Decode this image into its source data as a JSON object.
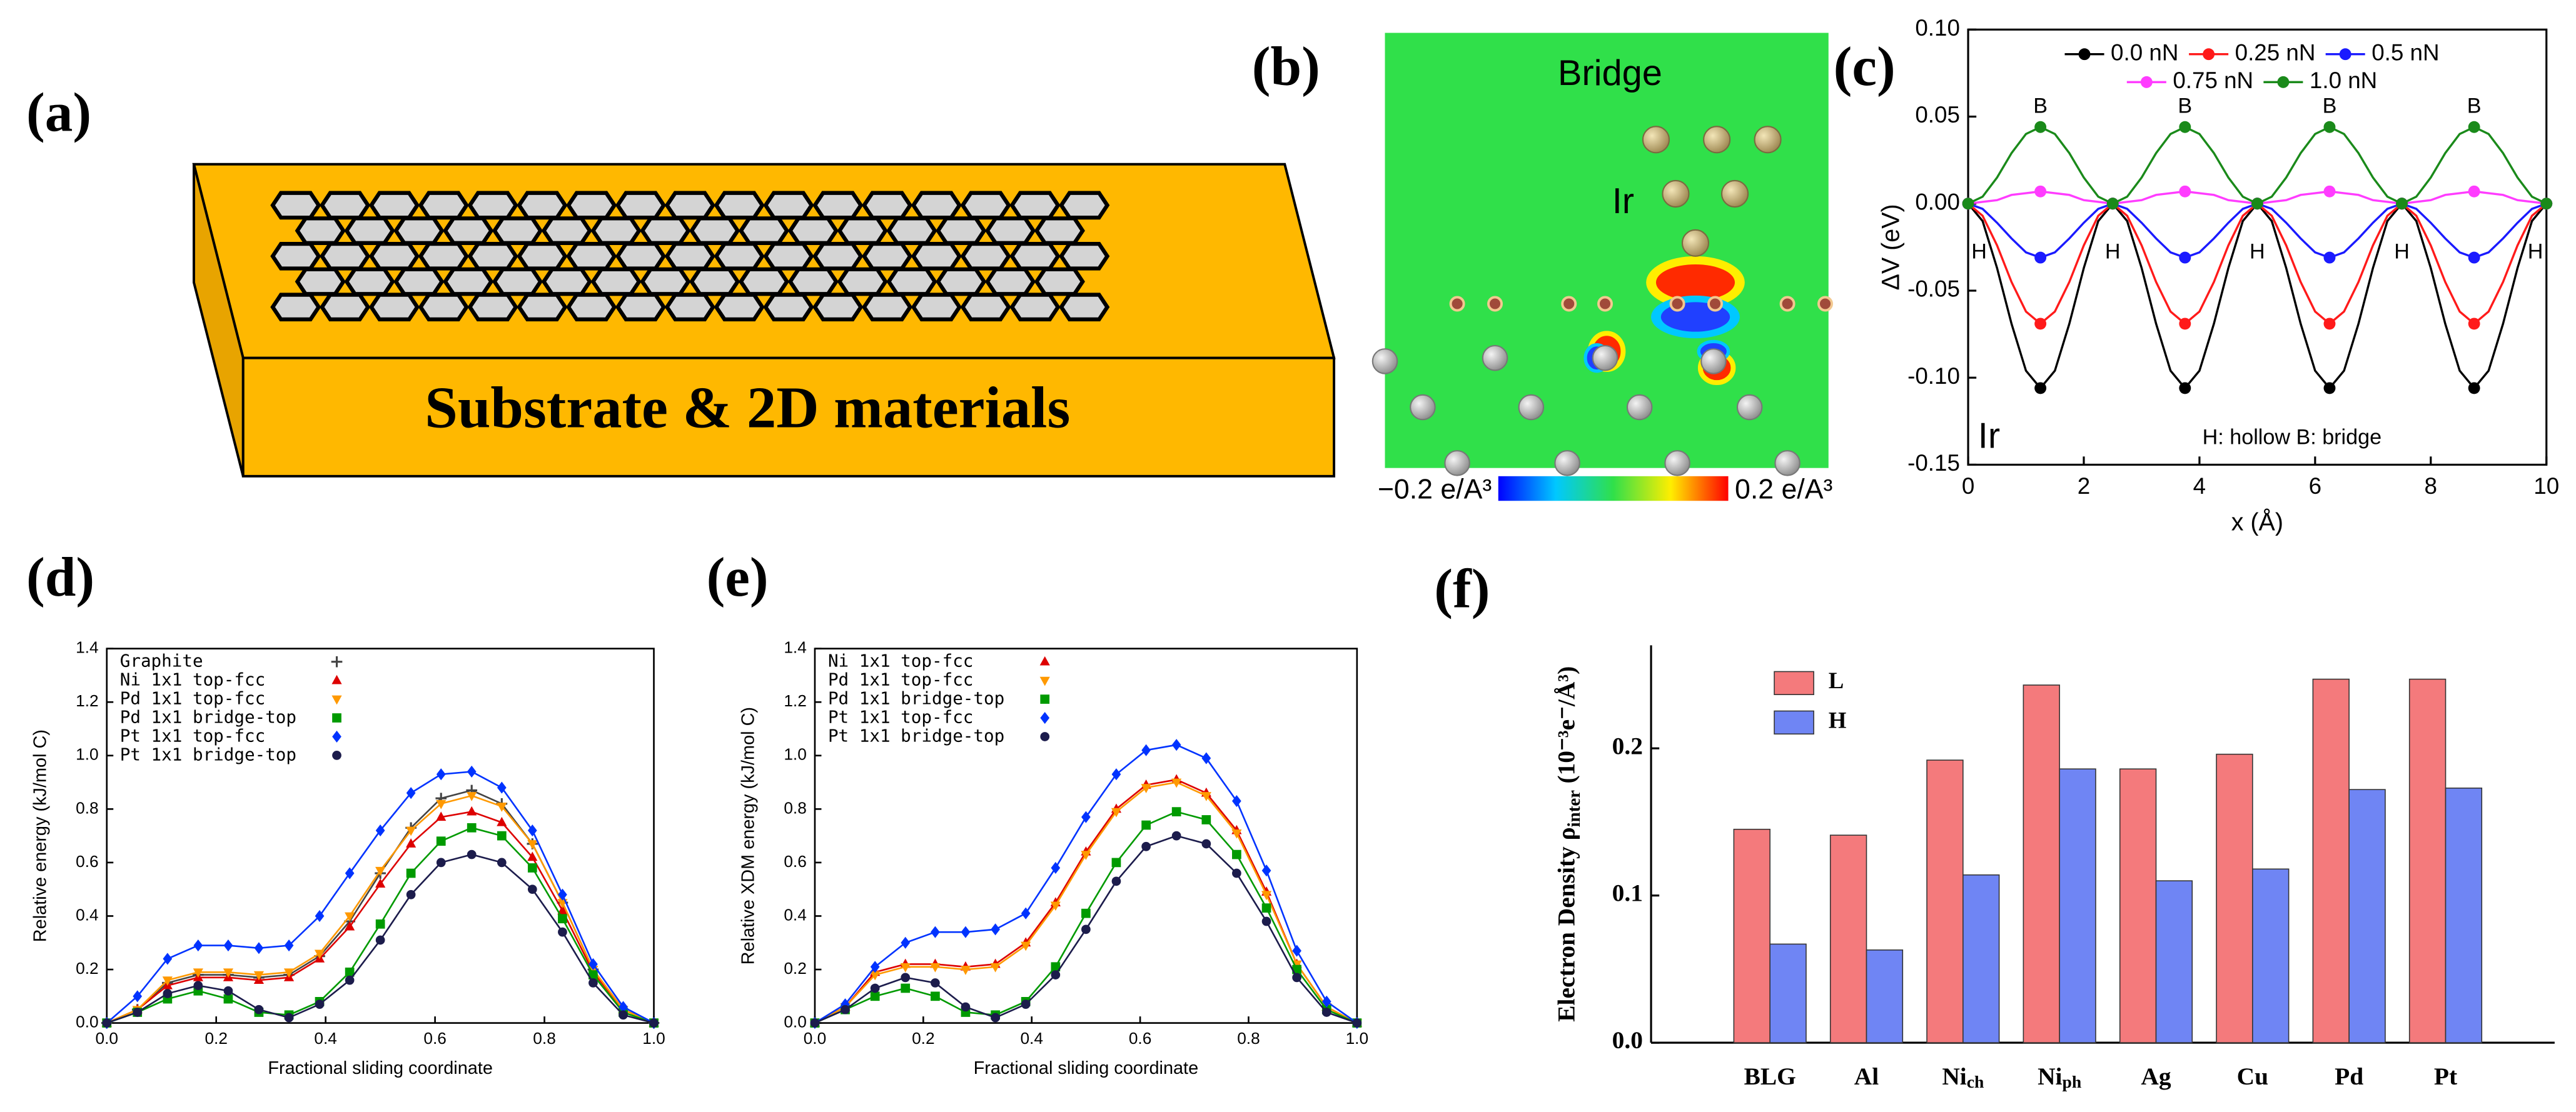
{
  "panel_labels": [
    "(a)",
    "(b)",
    "(c)",
    "(d)",
    "(e)",
    "(f)"
  ],
  "diagram": {
    "label": "Substrate & 2D materials"
  },
  "density_map": {
    "title": "Bridge",
    "atom_label": "Ir",
    "colorbar_min_label": "−0.2 e/A³",
    "colorbar_max_label": "0.2 e/A³"
  },
  "chart_data": [
    {
      "type": "line",
      "xlabel": "x (Å)",
      "ylabel": "ΔV (eV)",
      "xlim": [
        0,
        10
      ],
      "xticks": [
        0,
        2,
        4,
        6,
        8,
        10
      ],
      "ylim": [
        -0.15,
        0.1
      ],
      "yticks": [
        -0.15,
        {
          "value": -0.1,
          "label": "-0.10"
        },
        -0.05,
        {
          "value": 0,
          "label": "0.00"
        },
        0.05,
        {
          "value": 0.1,
          "label": "0.10"
        }
      ],
      "legend": "top",
      "markers": "extrema",
      "annotations": {
        "hollow": "H",
        "bridge": "B"
      },
      "inset_label": "Ir",
      "note": "H: hollow  B: bridge",
      "x": [
        0,
        0.25,
        0.5,
        0.75,
        1,
        1.25,
        1.5,
        1.75,
        2,
        2.25,
        2.5,
        2.75,
        3,
        3.25,
        3.5,
        3.75,
        4,
        4.25,
        4.5,
        4.75,
        5,
        5.25,
        5.5,
        5.75,
        6,
        6.25,
        6.5,
        6.75,
        7,
        7.25,
        7.5,
        7.75,
        8,
        8.25,
        8.5,
        8.75,
        9,
        9.25,
        9.5,
        9.75,
        10
      ],
      "series": [
        {
          "name": "0.0 nN",
          "color": "#000000",
          "marker": "circle",
          "values": [
            0,
            -0.01,
            -0.037,
            -0.069,
            -0.096,
            -0.106,
            -0.096,
            -0.069,
            -0.037,
            -0.01,
            0,
            -0.01,
            -0.037,
            -0.069,
            -0.096,
            -0.106,
            -0.096,
            -0.069,
            -0.037,
            -0.01,
            0,
            -0.01,
            -0.037,
            -0.069,
            -0.096,
            -0.106,
            -0.096,
            -0.069,
            -0.037,
            -0.01,
            0,
            -0.01,
            -0.037,
            -0.069,
            -0.096,
            -0.106,
            -0.096,
            -0.069,
            -0.037,
            -0.01,
            0
          ]
        },
        {
          "name": "0.25 nN",
          "color": "#ff1a1a",
          "marker": "circle",
          "values": [
            0,
            -0.007,
            -0.024,
            -0.045,
            -0.062,
            -0.069,
            -0.062,
            -0.045,
            -0.024,
            -0.007,
            0,
            -0.007,
            -0.024,
            -0.045,
            -0.062,
            -0.069,
            -0.062,
            -0.045,
            -0.024,
            -0.007,
            0,
            -0.007,
            -0.024,
            -0.045,
            -0.062,
            -0.069,
            -0.062,
            -0.045,
            -0.024,
            -0.007,
            0,
            -0.007,
            -0.024,
            -0.045,
            -0.062,
            -0.069,
            -0.062,
            -0.045,
            -0.024,
            -0.007,
            0
          ]
        },
        {
          "name": "0.5 nN",
          "color": "#1a1aff",
          "marker": "circle",
          "values": [
            0,
            -0.003,
            -0.011,
            -0.02,
            -0.028,
            -0.031,
            -0.028,
            -0.02,
            -0.011,
            -0.003,
            0,
            -0.003,
            -0.011,
            -0.02,
            -0.028,
            -0.031,
            -0.028,
            -0.02,
            -0.011,
            -0.003,
            0,
            -0.003,
            -0.011,
            -0.02,
            -0.028,
            -0.031,
            -0.028,
            -0.02,
            -0.011,
            -0.003,
            0,
            -0.003,
            -0.011,
            -0.02,
            -0.028,
            -0.031,
            -0.028,
            -0.02,
            -0.011,
            -0.003,
            0
          ]
        },
        {
          "name": "0.75 nN",
          "color": "#ff3cff",
          "marker": "circle",
          "values": [
            0,
            0.001,
            0.002,
            0.005,
            0.006,
            0.007,
            0.006,
            0.005,
            0.002,
            0.001,
            0,
            0.001,
            0.002,
            0.005,
            0.006,
            0.007,
            0.006,
            0.005,
            0.002,
            0.001,
            0,
            0.001,
            0.002,
            0.005,
            0.006,
            0.007,
            0.006,
            0.005,
            0.002,
            0.001,
            0,
            0.001,
            0.002,
            0.005,
            0.006,
            0.007,
            0.006,
            0.005,
            0.002,
            0.001,
            0
          ]
        },
        {
          "name": "1.0 nN",
          "color": "#1a8a1a",
          "marker": "circle",
          "values": [
            0,
            0.004,
            0.015,
            0.029,
            0.04,
            0.044,
            0.04,
            0.029,
            0.015,
            0.004,
            0,
            0.004,
            0.015,
            0.029,
            0.04,
            0.044,
            0.04,
            0.029,
            0.015,
            0.004,
            0,
            0.004,
            0.015,
            0.029,
            0.04,
            0.044,
            0.04,
            0.029,
            0.015,
            0.004,
            0,
            0.004,
            0.015,
            0.029,
            0.04,
            0.044,
            0.04,
            0.029,
            0.015,
            0.004,
            0
          ]
        }
      ]
    },
    {
      "type": "line",
      "xlabel": "Fractional sliding coordinate",
      "ylabel": "Relative energy (kJ/mol C)",
      "xlim": [
        0,
        1
      ],
      "xticks": [
        {
          "value": 0,
          "label": "0.0"
        },
        0.2,
        0.4,
        0.6,
        0.8,
        {
          "value": 1,
          "label": "1.0"
        }
      ],
      "ylim": [
        0,
        1.4
      ],
      "yticks": [
        {
          "value": 0,
          "label": "0.0"
        },
        0.2,
        0.4,
        0.6,
        0.8,
        {
          "value": 1,
          "label": "1.0"
        },
        1.2,
        1.4
      ],
      "legend": "upper left",
      "markers": "all",
      "x": [
        0,
        0.056,
        0.111,
        0.167,
        0.222,
        0.278,
        0.333,
        0.389,
        0.444,
        0.5,
        0.556,
        0.611,
        0.667,
        0.722,
        0.778,
        0.833,
        0.889,
        0.944,
        1
      ],
      "series": [
        {
          "name": "Graphite",
          "color": "#444444",
          "marker": "plus",
          "values": [
            0,
            0.05,
            0.15,
            0.18,
            0.18,
            0.17,
            0.18,
            0.25,
            0.38,
            0.56,
            0.73,
            0.84,
            0.87,
            0.82,
            0.67,
            0.45,
            0.2,
            0.05,
            0
          ]
        },
        {
          "name": "Ni 1x1 top-fcc",
          "color": "#dd0000",
          "marker": "triangle",
          "values": [
            0,
            0.05,
            0.14,
            0.17,
            0.17,
            0.16,
            0.17,
            0.24,
            0.36,
            0.52,
            0.67,
            0.77,
            0.79,
            0.75,
            0.62,
            0.42,
            0.19,
            0.05,
            0
          ]
        },
        {
          "name": "Pd 1x1 top-fcc",
          "color": "#ff9900",
          "marker": "triangle-down",
          "values": [
            0,
            0.05,
            0.16,
            0.19,
            0.19,
            0.18,
            0.19,
            0.26,
            0.4,
            0.57,
            0.72,
            0.82,
            0.85,
            0.81,
            0.67,
            0.45,
            0.2,
            0.05,
            0
          ]
        },
        {
          "name": "Pd 1x1 bridge-top",
          "color": "#009a00",
          "marker": "square",
          "values": [
            0,
            0.04,
            0.09,
            0.12,
            0.09,
            0.04,
            0.03,
            0.08,
            0.19,
            0.37,
            0.56,
            0.68,
            0.73,
            0.7,
            0.58,
            0.39,
            0.18,
            0.04,
            0
          ]
        },
        {
          "name": "Pt 1x1 top-fcc",
          "color": "#0033ff",
          "marker": "diamond",
          "values": [
            0,
            0.1,
            0.24,
            0.29,
            0.29,
            0.28,
            0.29,
            0.4,
            0.56,
            0.72,
            0.86,
            0.93,
            0.94,
            0.88,
            0.72,
            0.48,
            0.22,
            0.06,
            0
          ]
        },
        {
          "name": "Pt 1x1 bridge-top",
          "color": "#1c1c4c",
          "marker": "circle",
          "values": [
            0,
            0.04,
            0.11,
            0.14,
            0.12,
            0.05,
            0.02,
            0.07,
            0.16,
            0.31,
            0.48,
            0.6,
            0.63,
            0.6,
            0.5,
            0.34,
            0.15,
            0.03,
            0
          ]
        }
      ]
    },
    {
      "type": "line",
      "xlabel": "Fractional sliding coordinate",
      "ylabel": "Relative XDM energy (kJ/mol C)",
      "xlim": [
        0,
        1
      ],
      "xticks": [
        {
          "value": 0,
          "label": "0.0"
        },
        0.2,
        0.4,
        0.6,
        0.8,
        {
          "value": 1,
          "label": "1.0"
        }
      ],
      "ylim": [
        0,
        1.4
      ],
      "yticks": [
        {
          "value": 0,
          "label": "0.0"
        },
        0.2,
        0.4,
        0.6,
        0.8,
        {
          "value": 1,
          "label": "1.0"
        },
        1.2,
        1.4
      ],
      "legend": "upper left",
      "markers": "all",
      "x": [
        0,
        0.056,
        0.111,
        0.167,
        0.222,
        0.278,
        0.333,
        0.389,
        0.444,
        0.5,
        0.556,
        0.611,
        0.667,
        0.722,
        0.778,
        0.833,
        0.889,
        0.944,
        1
      ],
      "series": [
        {
          "name": "Ni 1x1 top-fcc",
          "color": "#dd0000",
          "marker": "triangle",
          "values": [
            0,
            0.06,
            0.19,
            0.22,
            0.22,
            0.21,
            0.22,
            0.3,
            0.45,
            0.64,
            0.8,
            0.89,
            0.91,
            0.86,
            0.72,
            0.49,
            0.22,
            0.06,
            0
          ]
        },
        {
          "name": "Pd 1x1 top-fcc",
          "color": "#ff9900",
          "marker": "triangle-down",
          "values": [
            0,
            0.06,
            0.18,
            0.21,
            0.21,
            0.2,
            0.21,
            0.29,
            0.44,
            0.63,
            0.79,
            0.88,
            0.9,
            0.85,
            0.71,
            0.48,
            0.22,
            0.06,
            0
          ]
        },
        {
          "name": "Pd 1x1 bridge-top",
          "color": "#009a00",
          "marker": "square",
          "values": [
            0,
            0.05,
            0.1,
            0.13,
            0.1,
            0.04,
            0.03,
            0.08,
            0.21,
            0.41,
            0.6,
            0.74,
            0.79,
            0.76,
            0.63,
            0.43,
            0.2,
            0.05,
            0
          ]
        },
        {
          "name": "Pt 1x1 top-fcc",
          "color": "#0033ff",
          "marker": "diamond",
          "values": [
            0,
            0.07,
            0.21,
            0.3,
            0.34,
            0.34,
            0.35,
            0.41,
            0.58,
            0.77,
            0.93,
            1.02,
            1.04,
            0.99,
            0.83,
            0.57,
            0.27,
            0.08,
            0
          ]
        },
        {
          "name": "Pt 1x1 bridge-top",
          "color": "#1c1c4c",
          "marker": "circle",
          "values": [
            0,
            0.05,
            0.13,
            0.17,
            0.15,
            0.06,
            0.02,
            0.07,
            0.18,
            0.35,
            0.53,
            0.66,
            0.7,
            0.67,
            0.56,
            0.38,
            0.17,
            0.04,
            0
          ]
        }
      ]
    },
    {
      "type": "bar",
      "ylabel": "Electron Density ρ",
      "ylabel_sub": "inter",
      "ylabel_unit": "(10⁻³e⁻/Å³)",
      "categories": [
        "BLG",
        "Al",
        [
          "Ni",
          "ch"
        ],
        [
          "Ni",
          "ph"
        ],
        "Ag",
        "Cu",
        "Pd",
        "Pt"
      ],
      "ylim": [
        0,
        0.27
      ],
      "yticks": [
        {
          "value": 0,
          "label": "0.0"
        },
        0.1,
        0.2
      ],
      "legend": "upper left",
      "series": [
        {
          "name": "L",
          "color": "#f47a7c",
          "values": [
            0.145,
            0.141,
            0.192,
            0.243,
            0.186,
            0.196,
            0.247,
            0.247
          ]
        },
        {
          "name": "H",
          "color": "#6f85f4",
          "values": [
            0.067,
            0.063,
            0.114,
            0.186,
            0.11,
            0.118,
            0.172,
            0.173
          ]
        }
      ]
    }
  ]
}
